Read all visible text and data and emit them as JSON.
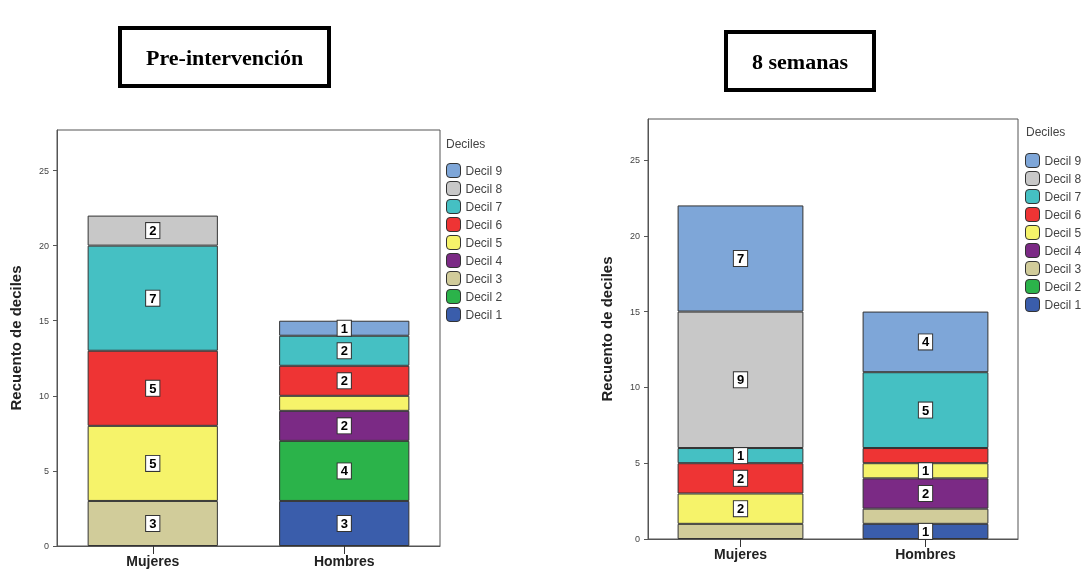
{
  "chart_data": [
    {
      "type": "bar",
      "title": "Pre-intervención",
      "ylabel": "Recuento de deciles",
      "legend_title": "Deciles",
      "legend": "right",
      "stacked": true,
      "categories": [
        "Mujeres",
        "Hombres"
      ],
      "ylim": [
        0,
        27.7
      ],
      "yticks": [
        0,
        5,
        10,
        15,
        20,
        25
      ],
      "grid": false,
      "series": [
        {
          "name": "Decil 1",
          "color": "#3a5dab",
          "values": [
            null,
            3
          ],
          "value_labels": [
            null,
            "3"
          ]
        },
        {
          "name": "Decil 2",
          "color": "#2bb34a",
          "values": [
            null,
            4
          ],
          "value_labels": [
            null,
            "4"
          ]
        },
        {
          "name": "Decil 3",
          "color": "#d1cc9a",
          "values": [
            3,
            null
          ],
          "value_labels": [
            "3",
            null
          ]
        },
        {
          "name": "Decil 4",
          "color": "#7b2a85",
          "values": [
            null,
            2
          ],
          "value_labels": [
            null,
            "2"
          ]
        },
        {
          "name": "Decil 5",
          "color": "#f6f36a",
          "values": [
            5,
            1
          ],
          "value_labels": [
            "5",
            null
          ]
        },
        {
          "name": "Decil 6",
          "color": "#ee3434",
          "values": [
            5,
            2
          ],
          "value_labels": [
            "5",
            "2"
          ]
        },
        {
          "name": "Decil 7",
          "color": "#45c0c3",
          "values": [
            7,
            2
          ],
          "value_labels": [
            "7",
            "2"
          ]
        },
        {
          "name": "Decil 8",
          "color": "#c8c8c8",
          "values": [
            2,
            null
          ],
          "value_labels": [
            "2",
            null
          ]
        },
        {
          "name": "Decil 9",
          "color": "#7ea6d8",
          "values": [
            null,
            1
          ],
          "value_labels": [
            null,
            "1"
          ]
        }
      ]
    },
    {
      "type": "bar",
      "title": "8 semanas",
      "ylabel": "Recuento de deciles",
      "legend_title": "Deciles",
      "legend": "right",
      "stacked": true,
      "categories": [
        "Mujeres",
        "Hombres"
      ],
      "ylim": [
        0,
        27.7
      ],
      "yticks": [
        0,
        5,
        10,
        15,
        20,
        25
      ],
      "grid": false,
      "series": [
        {
          "name": "Decil 1",
          "color": "#3a5dab",
          "values": [
            null,
            1
          ],
          "value_labels": [
            null,
            "1"
          ]
        },
        {
          "name": "Decil 2",
          "color": "#2bb34a",
          "values": [
            null,
            null
          ],
          "value_labels": [
            null,
            null
          ]
        },
        {
          "name": "Decil 3",
          "color": "#d1cc9a",
          "values": [
            1,
            1
          ],
          "value_labels": [
            null,
            null
          ]
        },
        {
          "name": "Decil 4",
          "color": "#7b2a85",
          "values": [
            null,
            2
          ],
          "value_labels": [
            null,
            "2"
          ]
        },
        {
          "name": "Decil 5",
          "color": "#f6f36a",
          "values": [
            2,
            1
          ],
          "value_labels": [
            "2",
            "1"
          ]
        },
        {
          "name": "Decil 6",
          "color": "#ee3434",
          "values": [
            2,
            1
          ],
          "value_labels": [
            "2",
            null
          ]
        },
        {
          "name": "Decil 7",
          "color": "#45c0c3",
          "values": [
            1,
            5
          ],
          "value_labels": [
            "1",
            "5"
          ]
        },
        {
          "name": "Decil 8",
          "color": "#c8c8c8",
          "values": [
            9,
            null
          ],
          "value_labels": [
            "9",
            null
          ]
        },
        {
          "name": "Decil 9",
          "color": "#7ea6d8",
          "values": [
            7,
            4
          ],
          "value_labels": [
            "7",
            "4"
          ]
        }
      ]
    }
  ]
}
